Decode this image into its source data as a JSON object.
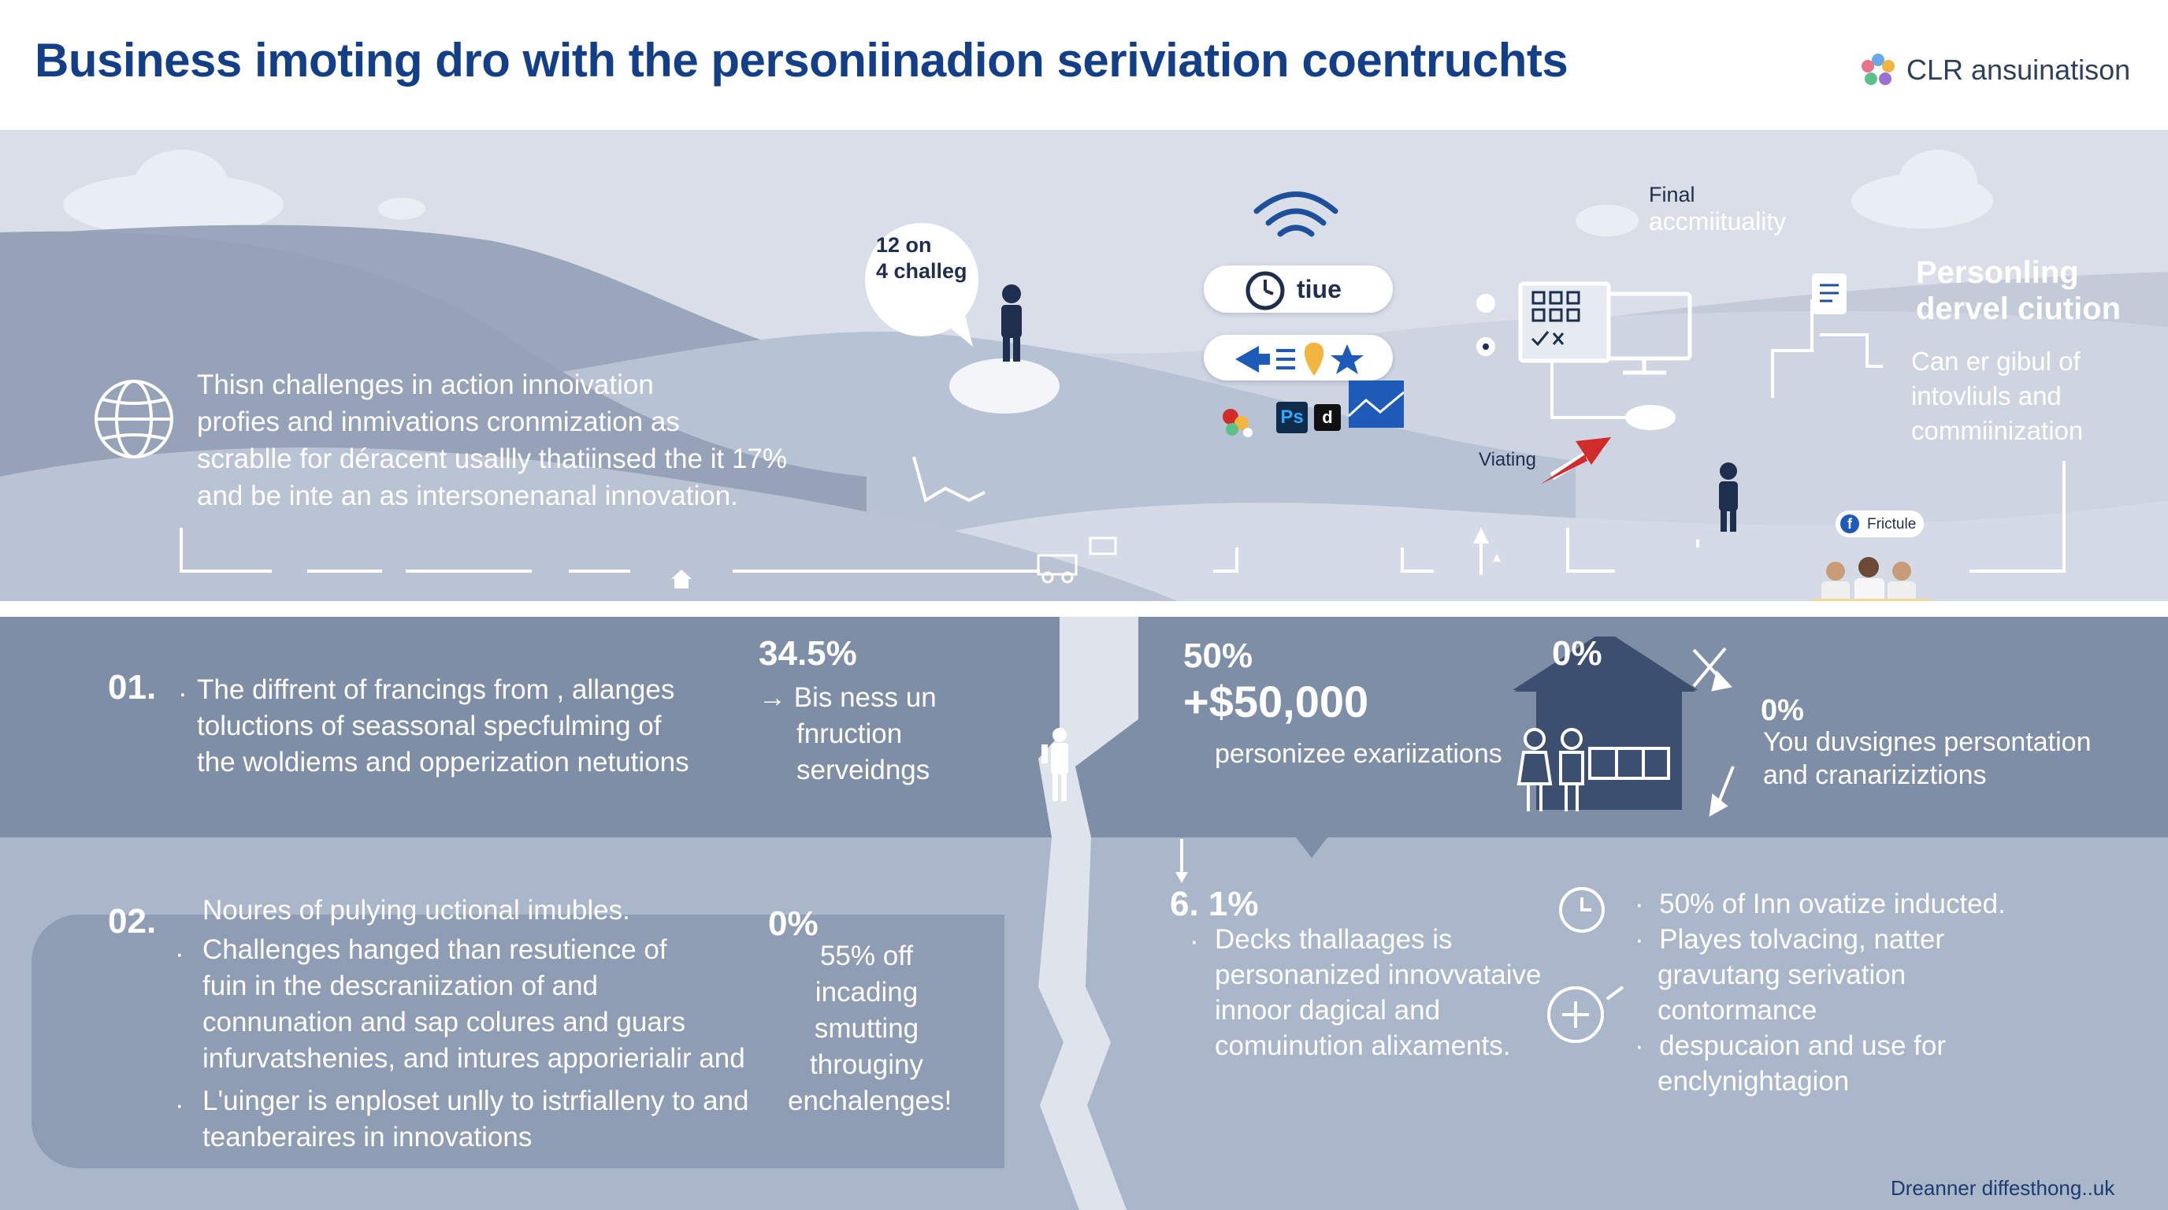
{
  "header": {
    "title": "Business imoting dro with the personiinadion seriviation coentruchts",
    "brand": "CLR ansuinatison"
  },
  "scene": {
    "intro_lines": [
      "Thisn challenges in action innoivation",
      "profies and inmivations cronmization as",
      "scrablle for déracent usallly thatiinsed the it 17%",
      "and be inte an as intersonenanal innovation."
    ],
    "bubble_lines": [
      "12 on",
      "4 challeg"
    ],
    "clock_pill_label": "tiue",
    "final_label_lines": [
      "Final",
      "accmiituality"
    ],
    "viating_label": "Viating",
    "right_title_lines": [
      "Personling",
      "dervel ciution"
    ],
    "right_sub_lines": [
      "Can er gibul of",
      "intovliuls and",
      "commiinization"
    ],
    "fb_badge_label": "Frictule",
    "ps_label": "Ps",
    "d_label": "d"
  },
  "band1": {
    "num": "01.",
    "bullet": ".",
    "lines": [
      "The diffrent of francings from , allanges",
      "toluctions of seassonal specfulming of",
      "the woldiems and opperization netutions"
    ],
    "stat_value": "34.5%",
    "stat_lines": [
      "→ Bis ness un",
      "fnruction",
      "serveidngs"
    ],
    "pct50": "50%",
    "money": "+$50,000",
    "money_label": "personizee exariizations",
    "pct0_a": "0%",
    "pct0_b": "0%",
    "right_lines": [
      "You duvsignes persontation",
      "and cranariziztions"
    ]
  },
  "band2": {
    "num": "02.",
    "heading": "Noures of pulying uctional imubles.",
    "bullet1": "·",
    "bullet2": "·",
    "lines_a": [
      "Challenges hanged than resutience of",
      "fuin in the descraniization of and",
      "connunation and sap colures and guars",
      "infurvatshenies, and intures apporierialir and"
    ],
    "lines_b": [
      "L'uinger is enploset unlly to istrfialleny to and",
      "teanberaires in innovations"
    ],
    "mid_pct": "0%",
    "mid_lines": [
      "55% off",
      "incading",
      "smutting",
      "througiny",
      "enchalenges!"
    ],
    "stat61": "6. 1%",
    "stat61_bullet": "·",
    "stat61_lines": [
      "Decks thallaages is",
      "personanized innovvataive",
      "innoor dagical and",
      "comuinution alixaments."
    ],
    "right_bullets": [
      [
        "50% of Inn ovatize inducted."
      ],
      [
        "Playes tolvacing, natter",
        "gravutang serivation",
        "contormance"
      ],
      [
        "despucaion and use for",
        "enclynightagion"
      ]
    ],
    "bullet_dot": "·",
    "footer": "Dreanner diffesthong..uk"
  },
  "colors": {
    "title": "#123f87",
    "scene_bg": "#d9dee9",
    "band1": "#7f8ea7",
    "band2": "#aab6c9",
    "accent_blue": "#1e5bb8",
    "accent_red": "#d22b2b"
  }
}
